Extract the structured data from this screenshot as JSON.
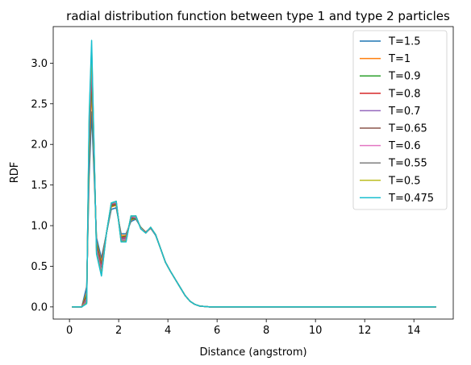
{
  "chart_data": {
    "type": "line",
    "title": "radial distribution function between type 1 and type 2 particles",
    "xlabel": "Distance (angstrom)",
    "ylabel": "RDF",
    "xlim": [
      -0.66,
      15.6
    ],
    "ylim": [
      -0.15,
      3.45
    ],
    "xticks": [
      "0",
      "2",
      "4",
      "6",
      "8",
      "10",
      "12",
      "14"
    ],
    "yticks": [
      "0.0",
      "0.5",
      "1.0",
      "1.5",
      "2.0",
      "2.5",
      "3.0"
    ],
    "grid": false,
    "legend": "top-right",
    "x": [
      0.1,
      0.3,
      0.5,
      0.7,
      0.8,
      0.9,
      1.1,
      1.3,
      1.5,
      1.7,
      1.9,
      2.1,
      2.3,
      2.5,
      2.7,
      2.9,
      3.1,
      3.3,
      3.5,
      3.7,
      3.9,
      4.1,
      4.3,
      4.5,
      4.7,
      4.9,
      5.1,
      5.3,
      5.5,
      5.7,
      6.0,
      7.0,
      8.0,
      9.0,
      10.0,
      11.0,
      12.0,
      13.0,
      14.0,
      14.9
    ],
    "series": [
      {
        "name": "T=1.5",
        "color": "#1f77b4",
        "values": [
          0,
          0,
          0,
          0.25,
          1.6,
          2.4,
          0.85,
          0.6,
          0.9,
          1.2,
          1.22,
          0.9,
          0.9,
          1.05,
          1.08,
          0.98,
          0.92,
          0.97,
          0.88,
          0.72,
          0.55,
          0.44,
          0.34,
          0.24,
          0.14,
          0.07,
          0.03,
          0.01,
          0.005,
          0,
          0,
          0,
          0,
          0,
          0,
          0,
          0,
          0,
          0,
          0
        ]
      },
      {
        "name": "T=1",
        "color": "#ff7f0e",
        "values": [
          0,
          0,
          0,
          0.18,
          1.8,
          2.7,
          0.8,
          0.55,
          0.9,
          1.23,
          1.25,
          0.88,
          0.88,
          1.07,
          1.09,
          0.98,
          0.92,
          0.97,
          0.89,
          0.72,
          0.55,
          0.44,
          0.34,
          0.24,
          0.14,
          0.07,
          0.03,
          0.01,
          0.005,
          0,
          0,
          0,
          0,
          0,
          0,
          0,
          0,
          0,
          0,
          0
        ]
      },
      {
        "name": "T=0.9",
        "color": "#2ca02c",
        "values": [
          0,
          0,
          0,
          0.15,
          1.9,
          2.8,
          0.78,
          0.52,
          0.9,
          1.24,
          1.26,
          0.86,
          0.87,
          1.08,
          1.09,
          0.98,
          0.92,
          0.97,
          0.89,
          0.72,
          0.55,
          0.44,
          0.34,
          0.24,
          0.14,
          0.07,
          0.03,
          0.01,
          0.005,
          0,
          0,
          0,
          0,
          0,
          0,
          0,
          0,
          0,
          0,
          0
        ]
      },
      {
        "name": "T=0.8",
        "color": "#d62728",
        "values": [
          0,
          0,
          0,
          0.12,
          2.0,
          2.9,
          0.75,
          0.5,
          0.9,
          1.25,
          1.27,
          0.85,
          0.86,
          1.09,
          1.1,
          0.97,
          0.92,
          0.97,
          0.89,
          0.72,
          0.55,
          0.44,
          0.34,
          0.24,
          0.14,
          0.07,
          0.03,
          0.01,
          0.005,
          0,
          0,
          0,
          0,
          0,
          0,
          0,
          0,
          0,
          0,
          0
        ]
      },
      {
        "name": "T=0.7",
        "color": "#9467bd",
        "values": [
          0,
          0,
          0,
          0.1,
          2.1,
          3.0,
          0.73,
          0.47,
          0.9,
          1.26,
          1.28,
          0.84,
          0.85,
          1.1,
          1.1,
          0.97,
          0.91,
          0.97,
          0.89,
          0.72,
          0.55,
          0.44,
          0.34,
          0.24,
          0.14,
          0.07,
          0.03,
          0.01,
          0.005,
          0,
          0,
          0,
          0,
          0,
          0,
          0,
          0,
          0,
          0,
          0
        ]
      },
      {
        "name": "T=0.65",
        "color": "#8c564b",
        "values": [
          0,
          0,
          0,
          0.08,
          2.15,
          3.05,
          0.72,
          0.45,
          0.9,
          1.26,
          1.29,
          0.83,
          0.84,
          1.1,
          1.11,
          0.97,
          0.91,
          0.97,
          0.89,
          0.72,
          0.55,
          0.44,
          0.34,
          0.24,
          0.14,
          0.07,
          0.03,
          0.01,
          0.005,
          0,
          0,
          0,
          0,
          0,
          0,
          0,
          0,
          0,
          0,
          0
        ]
      },
      {
        "name": "T=0.6",
        "color": "#e377c2",
        "values": [
          0,
          0,
          0,
          0.07,
          2.2,
          3.1,
          0.7,
          0.43,
          0.9,
          1.27,
          1.29,
          0.82,
          0.83,
          1.11,
          1.11,
          0.97,
          0.91,
          0.98,
          0.89,
          0.72,
          0.55,
          0.44,
          0.34,
          0.24,
          0.14,
          0.07,
          0.03,
          0.01,
          0.005,
          0,
          0,
          0,
          0,
          0,
          0,
          0,
          0,
          0,
          0,
          0
        ]
      },
      {
        "name": "T=0.55",
        "color": "#7f7f7f",
        "values": [
          0,
          0,
          0,
          0.06,
          2.25,
          3.15,
          0.68,
          0.41,
          0.9,
          1.27,
          1.3,
          0.81,
          0.82,
          1.11,
          1.12,
          0.96,
          0.91,
          0.98,
          0.89,
          0.72,
          0.55,
          0.44,
          0.34,
          0.24,
          0.14,
          0.07,
          0.03,
          0.01,
          0.005,
          0,
          0,
          0,
          0,
          0,
          0,
          0,
          0,
          0,
          0,
          0
        ]
      },
      {
        "name": "T=0.5",
        "color": "#bcbd22",
        "values": [
          0,
          0,
          0,
          0.05,
          2.3,
          3.2,
          0.66,
          0.39,
          0.9,
          1.28,
          1.3,
          0.8,
          0.81,
          1.12,
          1.12,
          0.96,
          0.91,
          0.98,
          0.89,
          0.72,
          0.55,
          0.44,
          0.34,
          0.24,
          0.14,
          0.07,
          0.03,
          0.01,
          0.005,
          0,
          0,
          0,
          0,
          0,
          0,
          0,
          0,
          0,
          0,
          0
        ]
      },
      {
        "name": "T=0.475",
        "color": "#17becf",
        "values": [
          0,
          0,
          0,
          0.04,
          2.35,
          3.28,
          0.65,
          0.38,
          0.9,
          1.28,
          1.3,
          0.8,
          0.8,
          1.12,
          1.12,
          0.96,
          0.91,
          0.98,
          0.89,
          0.72,
          0.55,
          0.44,
          0.34,
          0.24,
          0.14,
          0.07,
          0.03,
          0.01,
          0.005,
          0,
          0,
          0,
          0,
          0,
          0,
          0,
          0,
          0,
          0,
          0
        ]
      }
    ]
  }
}
